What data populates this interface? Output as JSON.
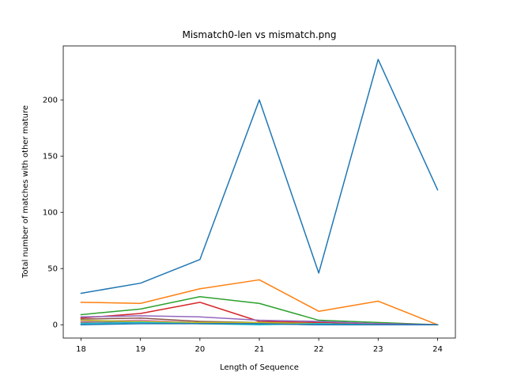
{
  "chart_data": {
    "type": "line",
    "title": "Mismatch0-len vs mismatch.png",
    "xlabel": "Length of Sequence",
    "ylabel": "Total number of matches with other mature",
    "x": [
      18,
      19,
      20,
      21,
      22,
      23,
      24
    ],
    "xlim": [
      17.7,
      24.3
    ],
    "ylim": [
      -11.8,
      248
    ],
    "xticks": [
      18,
      19,
      20,
      21,
      22,
      23,
      24
    ],
    "yticks": [
      0,
      50,
      100,
      150,
      200
    ],
    "grid": false,
    "legend": "none",
    "series": [
      {
        "color": "#1f77b4",
        "values": [
          28,
          37,
          58,
          200,
          46,
          236,
          120
        ]
      },
      {
        "color": "#ff7f0e",
        "values": [
          20,
          19,
          32,
          40,
          12,
          21,
          0
        ]
      },
      {
        "color": "#2ca02c",
        "values": [
          9,
          14,
          25,
          19,
          4,
          2,
          0
        ]
      },
      {
        "color": "#d62728",
        "values": [
          6,
          10,
          20,
          3,
          2,
          1,
          0
        ]
      },
      {
        "color": "#9467bd",
        "values": [
          7,
          8,
          7,
          4,
          3,
          1,
          0
        ]
      },
      {
        "color": "#8c564b",
        "values": [
          5,
          6,
          3,
          2,
          1,
          0,
          0
        ]
      },
      {
        "color": "#e377c2",
        "values": [
          3,
          4,
          2,
          1,
          1,
          0,
          0
        ]
      },
      {
        "color": "#7f7f7f",
        "values": [
          2,
          3,
          1,
          1,
          0,
          0,
          0
        ]
      },
      {
        "color": "#bcbd22",
        "values": [
          4,
          3,
          2,
          2,
          1,
          0,
          0
        ]
      },
      {
        "color": "#17becf",
        "values": [
          1,
          2,
          1,
          0,
          1,
          0,
          0
        ]
      },
      {
        "color": "#1f77b4",
        "values": [
          0,
          1,
          1,
          1,
          0,
          0,
          0
        ]
      }
    ]
  }
}
